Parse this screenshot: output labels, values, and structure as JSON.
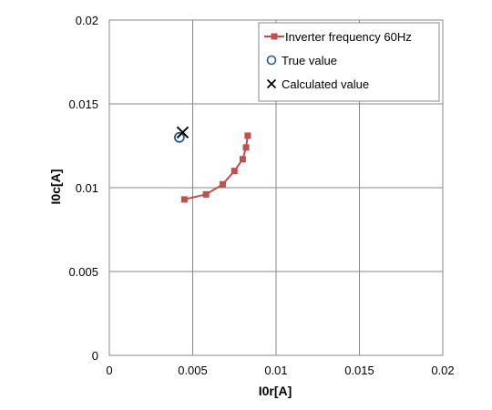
{
  "chart_data": {
    "type": "scatter",
    "title": "",
    "xlabel": "I0r[A]",
    "ylabel": "I0c[A]",
    "xlim": [
      0,
      0.02
    ],
    "ylim": [
      0,
      0.02
    ],
    "x_ticks": [
      "0",
      "0.005",
      "0.01",
      "0.015",
      "0.02"
    ],
    "y_ticks": [
      "0",
      "0.005",
      "0.01",
      "0.015",
      "0.02"
    ],
    "grid": true,
    "legend_position": "top-right",
    "series": [
      {
        "name": "Inverter frequency 60Hz",
        "style": "line-square",
        "color": "#c0504d",
        "points": [
          {
            "x": 0.0045,
            "y": 0.0093
          },
          {
            "x": 0.0058,
            "y": 0.0096
          },
          {
            "x": 0.0068,
            "y": 0.0102
          },
          {
            "x": 0.0075,
            "y": 0.011
          },
          {
            "x": 0.008,
            "y": 0.0117
          },
          {
            "x": 0.0082,
            "y": 0.0124
          },
          {
            "x": 0.0083,
            "y": 0.0131
          }
        ]
      },
      {
        "name": "True value",
        "style": "circle",
        "color": "#1f5f8b",
        "points": [
          {
            "x": 0.0042,
            "y": 0.013
          }
        ]
      },
      {
        "name": "Calculated value",
        "style": "cross",
        "color": "#000000",
        "points": [
          {
            "x": 0.0044,
            "y": 0.0133
          }
        ]
      }
    ]
  }
}
